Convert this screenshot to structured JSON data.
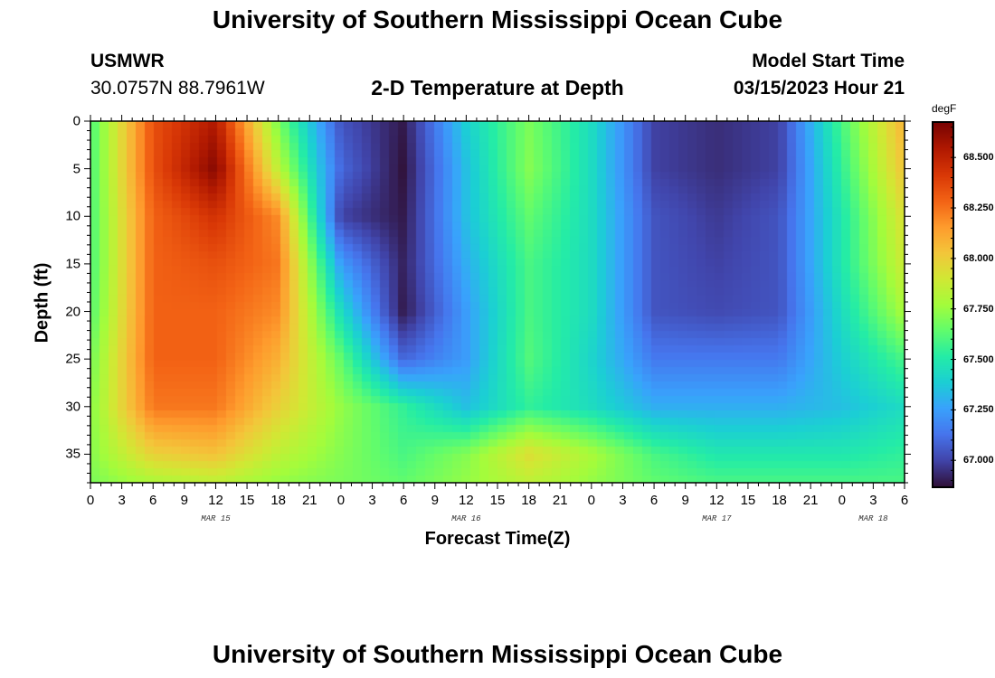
{
  "page": {
    "title_top": "University of Southern Mississippi Ocean Cube",
    "title_bottom": "University of Southern Mississippi Ocean Cube",
    "station": "USMWR",
    "coordinates": "30.0757N  88.7961W",
    "subtitle": "2-D Temperature at Depth",
    "model_start_label": "Model Start Time",
    "model_start_value": "03/15/2023 Hour 21"
  },
  "chart_data": {
    "type": "heatmap",
    "title": "2-D Temperature at Depth",
    "xlabel": "Forecast Time(Z)",
    "ylabel": "Depth (ft)",
    "x_tick_labels": [
      "0",
      "3",
      "6",
      "9",
      "12",
      "15",
      "18",
      "21",
      "0",
      "3",
      "6",
      "9",
      "12",
      "15",
      "18",
      "21",
      "0",
      "3",
      "6",
      "9",
      "12",
      "15",
      "18",
      "21",
      "0",
      "3",
      "6"
    ],
    "x_range_hours": [
      0,
      78
    ],
    "x_date_labels": [
      {
        "label": "MAR 15",
        "hour": 12
      },
      {
        "label": "MAR 16",
        "hour": 36
      },
      {
        "label": "MAR 17",
        "hour": 60
      },
      {
        "label": "MAR 18",
        "hour": 75
      }
    ],
    "y_tick_labels": [
      "0",
      "5",
      "10",
      "15",
      "20",
      "25",
      "30",
      "35"
    ],
    "y_ticks": [
      0,
      5,
      10,
      15,
      20,
      25,
      30,
      35
    ],
    "ylim": [
      0,
      38
    ],
    "y_inverted": true,
    "colorbar": {
      "unit": "degF",
      "vmin": 66.88,
      "vmax": 68.68,
      "tick_values": [
        67.0,
        67.25,
        67.5,
        67.75,
        68.0,
        68.25,
        68.5
      ],
      "tick_labels": [
        "67.000",
        "67.250",
        "67.500",
        "67.750",
        "68.000",
        "68.250",
        "68.500"
      ],
      "colormap": [
        "#30123b",
        "#4145ab",
        "#4675ed",
        "#39a2fc",
        "#1bcfd4",
        "#24eca6",
        "#61fc6c",
        "#a4fc3b",
        "#d1e834",
        "#f3c63a",
        "#fe9b2d",
        "#f36315",
        "#d93806",
        "#b11901",
        "#7a0402"
      ]
    },
    "grid": {
      "x_hours": [
        0,
        6,
        12,
        18,
        24,
        30,
        36,
        42,
        48,
        54,
        60,
        66,
        72,
        78
      ],
      "depths_ft": [
        0,
        5,
        10,
        15,
        20,
        25,
        30,
        35,
        38
      ],
      "values_degF": [
        [
          67.6,
          68.35,
          68.55,
          67.7,
          67.05,
          66.9,
          67.4,
          67.7,
          67.45,
          67.0,
          66.95,
          67.0,
          67.6,
          68.1
        ],
        [
          67.6,
          68.35,
          68.65,
          67.85,
          67.1,
          66.88,
          67.35,
          67.72,
          67.45,
          67.0,
          66.95,
          67.0,
          67.55,
          68.05
        ],
        [
          67.6,
          68.3,
          68.45,
          68.2,
          67.0,
          66.9,
          67.35,
          67.65,
          67.45,
          67.05,
          66.98,
          67.05,
          67.5,
          67.95
        ],
        [
          67.6,
          68.3,
          68.35,
          68.25,
          67.25,
          66.92,
          67.3,
          67.6,
          67.45,
          67.05,
          67.0,
          67.05,
          67.5,
          67.9
        ],
        [
          67.62,
          68.3,
          68.3,
          68.2,
          67.45,
          66.9,
          67.25,
          67.6,
          67.45,
          67.05,
          67.02,
          67.05,
          67.45,
          67.8
        ],
        [
          67.68,
          68.3,
          68.3,
          68.1,
          67.65,
          67.1,
          67.25,
          67.62,
          67.42,
          67.15,
          67.15,
          67.15,
          67.4,
          67.6
        ],
        [
          67.72,
          68.25,
          68.25,
          68.0,
          67.75,
          67.55,
          67.35,
          67.55,
          67.45,
          67.3,
          67.3,
          67.3,
          67.35,
          67.45
        ],
        [
          67.72,
          68.0,
          68.05,
          67.85,
          67.72,
          67.6,
          67.72,
          67.95,
          67.8,
          67.6,
          67.5,
          67.5,
          67.5,
          67.55
        ],
        [
          67.7,
          67.8,
          67.85,
          67.75,
          67.7,
          67.65,
          67.75,
          67.85,
          67.75,
          67.65,
          67.6,
          67.6,
          67.6,
          67.6
        ]
      ]
    }
  }
}
